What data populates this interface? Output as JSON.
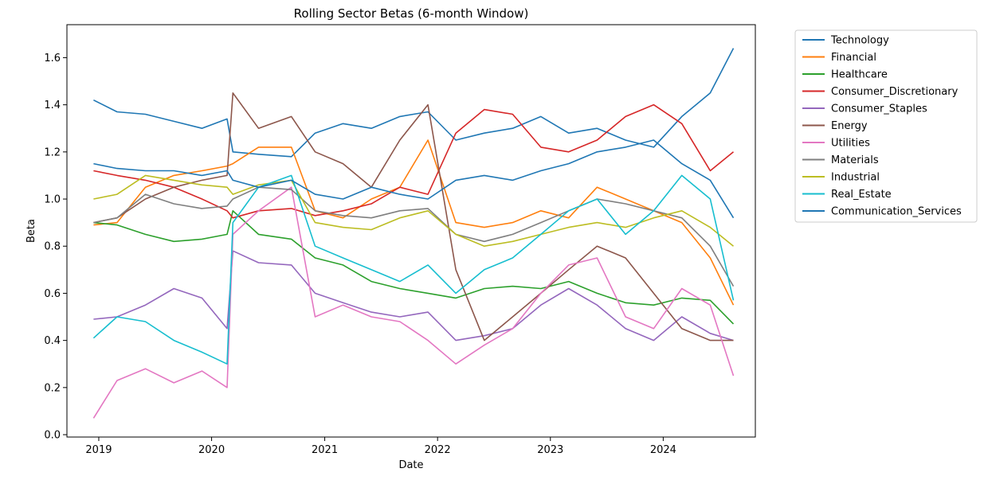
{
  "chart_data": {
    "type": "line",
    "title": "Rolling Sector Betas (6-month Window)",
    "xlabel": "Date",
    "ylabel": "Beta",
    "xlim": [
      "2018-09-20",
      "2024-10-25"
    ],
    "ylim": [
      -0.01,
      1.74
    ],
    "x_ticks": [
      "2019",
      "2020",
      "2021",
      "2022",
      "2023",
      "2024"
    ],
    "y_ticks": [
      "0.0",
      "0.2",
      "0.4",
      "0.6",
      "0.8",
      "1.0",
      "1.2",
      "1.4",
      "1.6"
    ],
    "grid": false,
    "legend_position": "outside-right",
    "x": [
      "2018-12-15",
      "2019-03-01",
      "2019-06-01",
      "2019-09-01",
      "2019-12-01",
      "2020-02-20",
      "2020-03-10",
      "2020-06-01",
      "2020-09-15",
      "2020-12-01",
      "2021-03-01",
      "2021-06-01",
      "2021-09-01",
      "2021-12-01",
      "2022-03-01",
      "2022-06-01",
      "2022-09-01",
      "2022-12-01",
      "2023-03-01",
      "2023-06-01",
      "2023-09-01",
      "2023-12-01",
      "2024-03-01",
      "2024-06-01",
      "2024-08-15"
    ],
    "series": [
      {
        "name": "Technology",
        "color": "#1f77b4",
        "values": [
          1.42,
          1.37,
          1.36,
          1.33,
          1.3,
          1.34,
          1.2,
          1.19,
          1.18,
          1.28,
          1.32,
          1.3,
          1.35,
          1.37,
          1.25,
          1.28,
          1.3,
          1.35,
          1.28,
          1.3,
          1.25,
          1.22,
          1.35,
          1.45,
          1.64
        ]
      },
      {
        "name": "Financial",
        "color": "#ff7f0e",
        "values": [
          0.89,
          0.9,
          1.05,
          1.1,
          1.12,
          1.14,
          1.15,
          1.22,
          1.22,
          0.95,
          0.92,
          1.0,
          1.05,
          1.25,
          0.9,
          0.88,
          0.9,
          0.95,
          0.92,
          1.05,
          1.0,
          0.95,
          0.9,
          0.75,
          0.55
        ]
      },
      {
        "name": "Healthcare",
        "color": "#2ca02c",
        "values": [
          0.9,
          0.89,
          0.85,
          0.82,
          0.83,
          0.85,
          0.95,
          0.85,
          0.83,
          0.75,
          0.72,
          0.65,
          0.62,
          0.6,
          0.58,
          0.62,
          0.63,
          0.62,
          0.65,
          0.6,
          0.56,
          0.55,
          0.58,
          0.57,
          0.47
        ]
      },
      {
        "name": "Consumer_Discretionary",
        "color": "#d62728",
        "values": [
          1.12,
          1.1,
          1.08,
          1.05,
          1.0,
          0.95,
          0.92,
          0.95,
          0.96,
          0.93,
          0.95,
          0.98,
          1.05,
          1.02,
          1.28,
          1.38,
          1.36,
          1.22,
          1.2,
          1.25,
          1.35,
          1.4,
          1.32,
          1.12,
          1.2
        ]
      },
      {
        "name": "Consumer_Staples",
        "color": "#9467bd",
        "values": [
          0.49,
          0.5,
          0.55,
          0.62,
          0.58,
          0.45,
          0.78,
          0.73,
          0.72,
          0.6,
          0.56,
          0.52,
          0.5,
          0.52,
          0.4,
          0.42,
          0.45,
          0.55,
          0.62,
          0.55,
          0.45,
          0.4,
          0.5,
          0.43,
          0.4
        ]
      },
      {
        "name": "Energy",
        "color": "#8c564b",
        "values": [
          0.9,
          0.92,
          1.0,
          1.05,
          1.08,
          1.1,
          1.45,
          1.3,
          1.35,
          1.2,
          1.15,
          1.05,
          1.25,
          1.4,
          0.7,
          0.4,
          0.5,
          0.6,
          0.7,
          0.8,
          0.75,
          0.6,
          0.45,
          0.4,
          0.4
        ]
      },
      {
        "name": "Utilities",
        "color": "#e377c2",
        "values": [
          0.07,
          0.23,
          0.28,
          0.22,
          0.27,
          0.2,
          0.85,
          0.95,
          1.05,
          0.5,
          0.55,
          0.5,
          0.48,
          0.4,
          0.3,
          0.38,
          0.45,
          0.6,
          0.72,
          0.75,
          0.5,
          0.45,
          0.62,
          0.55,
          0.25
        ]
      },
      {
        "name": "Materials",
        "color": "#7f7f7f",
        "values": [
          0.9,
          0.92,
          1.02,
          0.98,
          0.96,
          0.97,
          1.0,
          1.05,
          1.04,
          0.95,
          0.93,
          0.92,
          0.95,
          0.96,
          0.85,
          0.82,
          0.85,
          0.9,
          0.95,
          1.0,
          0.98,
          0.95,
          0.92,
          0.8,
          0.63
        ]
      },
      {
        "name": "Industrial",
        "color": "#bcbd22",
        "values": [
          1.0,
          1.02,
          1.1,
          1.08,
          1.06,
          1.05,
          1.02,
          1.06,
          1.08,
          0.9,
          0.88,
          0.87,
          0.92,
          0.95,
          0.85,
          0.8,
          0.82,
          0.85,
          0.88,
          0.9,
          0.88,
          0.92,
          0.95,
          0.88,
          0.8
        ]
      },
      {
        "name": "Real_Estate",
        "color": "#17becf",
        "values": [
          0.41,
          0.5,
          0.48,
          0.4,
          0.35,
          0.3,
          0.9,
          1.05,
          1.1,
          0.8,
          0.75,
          0.7,
          0.65,
          0.72,
          0.6,
          0.7,
          0.75,
          0.85,
          0.95,
          1.0,
          0.85,
          0.95,
          1.1,
          1.0,
          0.57
        ]
      },
      {
        "name": "Communication_Services",
        "color": "#1f77b4",
        "values": [
          1.15,
          1.13,
          1.12,
          1.12,
          1.1,
          1.12,
          1.08,
          1.05,
          1.08,
          1.02,
          1.0,
          1.05,
          1.02,
          1.0,
          1.08,
          1.1,
          1.08,
          1.12,
          1.15,
          1.2,
          1.22,
          1.25,
          1.15,
          1.08,
          0.92
        ]
      }
    ]
  }
}
